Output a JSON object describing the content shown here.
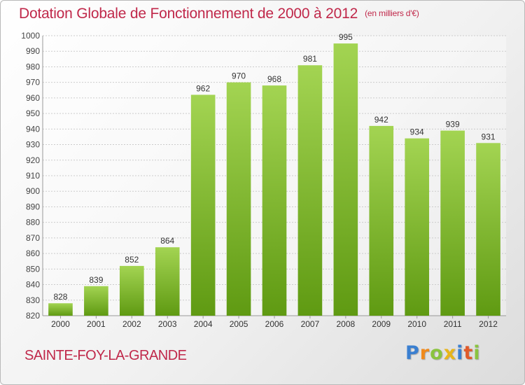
{
  "chart_data": {
    "type": "bar",
    "title": "Dotation Globale de Fonctionnement de 2000 à 2012",
    "subtitle": "(en milliers d'€)",
    "categories": [
      "2000",
      "2001",
      "2002",
      "2003",
      "2004",
      "2005",
      "2006",
      "2007",
      "2008",
      "2009",
      "2010",
      "2011",
      "2012"
    ],
    "values": [
      828,
      839,
      852,
      864,
      962,
      970,
      968,
      981,
      995,
      942,
      934,
      939,
      931
    ],
    "ylim": [
      820,
      1000
    ],
    "ytick_step": 10,
    "grid": true,
    "colors": {
      "bar_top": "#a3d452",
      "bar_bottom": "#5f9a12",
      "grid": "#cccccc"
    }
  },
  "footer": {
    "city": "SAINTE-FOY-LA-GRANDE",
    "logo_letters": [
      "P",
      "r",
      "o",
      "x",
      "i",
      "t",
      "i"
    ],
    "logo_colors": [
      "#3a7fd0",
      "#f08a1c",
      "#8ac43f",
      "#e8b51a",
      "#3a7fd0",
      "#e05a2a",
      "#8ac43f"
    ]
  }
}
